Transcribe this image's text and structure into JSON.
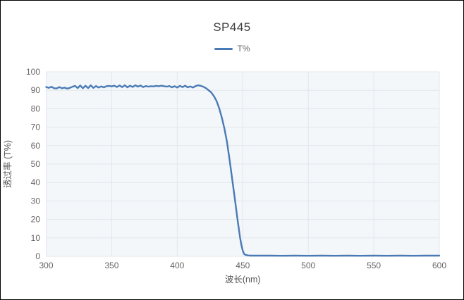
{
  "title": "SP445",
  "legend": {
    "label": "T%"
  },
  "colors": {
    "line": "#4a7ab5",
    "plot_bg": "#f3f7fa",
    "grid": "#e1e7ec",
    "title_text": "#404040",
    "tick_text": "#666666",
    "axis_label_text": "#555555"
  },
  "chart_data": {
    "type": "line",
    "title": "SP445",
    "xlabel": "波长(nm)",
    "ylabel": "透过率 (T%)",
    "xlim": [
      300,
      600
    ],
    "ylim": [
      0,
      100
    ],
    "xticks": [
      300,
      350,
      400,
      450,
      500,
      550,
      600
    ],
    "yticks": [
      0,
      10,
      20,
      30,
      40,
      50,
      60,
      70,
      80,
      90,
      100
    ],
    "grid": true,
    "legend_position": "top",
    "series": [
      {
        "name": "T%",
        "color": "#4a7ab5",
        "points": [
          [
            300,
            91.8
          ],
          [
            302,
            91.3
          ],
          [
            304,
            91.9
          ],
          [
            306,
            91.1
          ],
          [
            308,
            91.0
          ],
          [
            310,
            91.7
          ],
          [
            312,
            91.1
          ],
          [
            314,
            91.4
          ],
          [
            316,
            90.9
          ],
          [
            318,
            91.3
          ],
          [
            320,
            91.9
          ],
          [
            322,
            92.4
          ],
          [
            324,
            91.2
          ],
          [
            326,
            92.6
          ],
          [
            328,
            91.1
          ],
          [
            330,
            92.5
          ],
          [
            332,
            91.2
          ],
          [
            334,
            92.7
          ],
          [
            336,
            91.3
          ],
          [
            338,
            92.3
          ],
          [
            340,
            91.5
          ],
          [
            342,
            92.1
          ],
          [
            344,
            91.6
          ],
          [
            346,
            92.2
          ],
          [
            348,
            92.4
          ],
          [
            350,
            92.1
          ],
          [
            352,
            92.5
          ],
          [
            354,
            91.8
          ],
          [
            356,
            92.6
          ],
          [
            358,
            91.7
          ],
          [
            360,
            92.7
          ],
          [
            362,
            91.6
          ],
          [
            364,
            92.5
          ],
          [
            366,
            91.8
          ],
          [
            368,
            92.7
          ],
          [
            370,
            92.0
          ],
          [
            372,
            92.6
          ],
          [
            374,
            91.7
          ],
          [
            376,
            92.3
          ],
          [
            378,
            92.0
          ],
          [
            380,
            92.2
          ],
          [
            382,
            92.1
          ],
          [
            384,
            92.4
          ],
          [
            386,
            92.2
          ],
          [
            388,
            92.5
          ],
          [
            390,
            92.2
          ],
          [
            392,
            92.0
          ],
          [
            394,
            92.3
          ],
          [
            396,
            91.6
          ],
          [
            398,
            92.2
          ],
          [
            400,
            91.5
          ],
          [
            402,
            92.4
          ],
          [
            404,
            91.7
          ],
          [
            406,
            92.5
          ],
          [
            408,
            91.6
          ],
          [
            410,
            92.1
          ],
          [
            412,
            91.5
          ],
          [
            414,
            92.3
          ],
          [
            416,
            92.7
          ],
          [
            418,
            92.4
          ],
          [
            420,
            91.9
          ],
          [
            422,
            91.1
          ],
          [
            424,
            90.0
          ],
          [
            426,
            88.8
          ],
          [
            428,
            86.8
          ],
          [
            430,
            84.2
          ],
          [
            432,
            80.3
          ],
          [
            434,
            75.3
          ],
          [
            436,
            69.3
          ],
          [
            438,
            62.0
          ],
          [
            440,
            52.0
          ],
          [
            442,
            41.5
          ],
          [
            444,
            31.0
          ],
          [
            446,
            20.0
          ],
          [
            448,
            10.0
          ],
          [
            449,
            6.0
          ],
          [
            450,
            3.0
          ],
          [
            451,
            1.4
          ],
          [
            452,
            0.8
          ],
          [
            454,
            0.5
          ],
          [
            456,
            0.4
          ],
          [
            460,
            0.4
          ],
          [
            470,
            0.4
          ],
          [
            480,
            0.3
          ],
          [
            490,
            0.4
          ],
          [
            500,
            0.3
          ],
          [
            510,
            0.4
          ],
          [
            520,
            0.3
          ],
          [
            530,
            0.4
          ],
          [
            540,
            0.3
          ],
          [
            550,
            0.4
          ],
          [
            560,
            0.3
          ],
          [
            570,
            0.4
          ],
          [
            580,
            0.3
          ],
          [
            590,
            0.4
          ],
          [
            600,
            0.4
          ]
        ]
      }
    ]
  }
}
